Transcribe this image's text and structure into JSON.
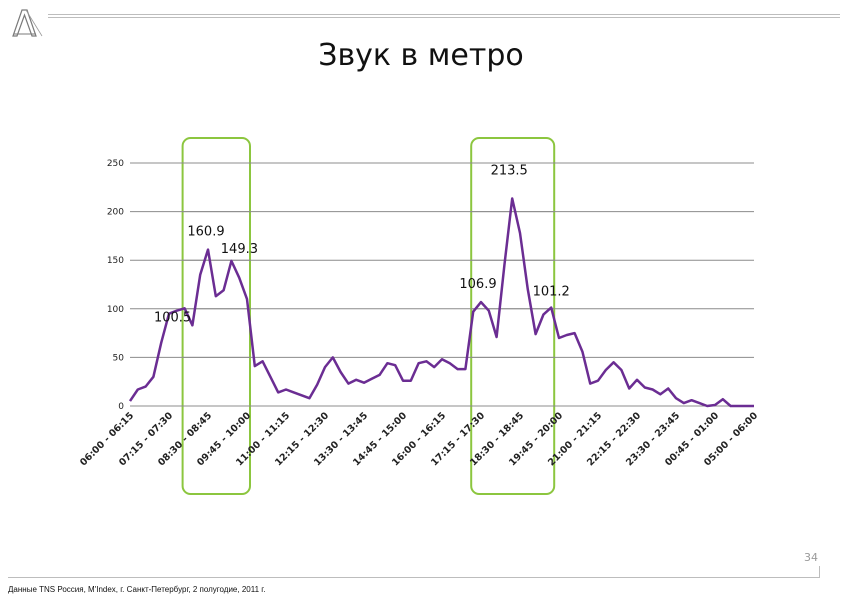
{
  "slide": {
    "title": "Звук в метро",
    "page_number": "34",
    "source": "Данные TNS Россия, M'Index, г. Санкт-Петербург, 2 полугодие, 2011 г.",
    "logo_letter": "A"
  },
  "colors": {
    "line": "#6b2d93",
    "highlight": "#8cc63f",
    "grid": "#8c8c8c",
    "axis_text": "#222222"
  },
  "chart_data": {
    "type": "line",
    "title": "",
    "xlabel": "",
    "ylabel": "",
    "ylim": [
      0,
      250
    ],
    "yticks": [
      0,
      50,
      100,
      150,
      200,
      250
    ],
    "grid": true,
    "x_tick_labels": [
      "06:00 - 06:15",
      "07:15 - 07:30",
      "08:30 - 08:45",
      "09:45 - 10:00",
      "11:00 - 11:15",
      "12:15 - 12:30",
      "13:30 - 13:45",
      "14:45 - 15:00",
      "16:00 - 16:15",
      "17:15 - 17:30",
      "18:30 - 18:45",
      "19:45 - 20:00",
      "21:00 - 21:15",
      "22:15 - 22:30",
      "23:30 - 23:45",
      "00:45 - 01:00",
      "05:00 - 06:00"
    ],
    "series": [
      {
        "values": [
          5,
          17,
          20,
          30,
          65,
          95,
          98,
          100.5,
          83,
          135,
          160.9,
          113,
          119,
          149.3,
          132,
          110,
          41,
          46,
          30,
          14,
          17,
          14,
          11,
          8,
          22,
          40,
          50,
          35,
          23,
          27,
          24,
          28,
          32,
          44,
          42,
          26,
          26,
          44,
          46,
          40,
          48,
          44,
          38,
          38,
          97,
          106.9,
          98,
          71,
          145,
          213.5,
          178,
          120,
          74,
          94,
          101.2,
          70,
          73,
          75,
          56,
          23,
          26,
          37,
          45,
          37,
          18,
          27,
          19,
          17,
          12,
          18,
          8,
          3,
          6,
          3,
          0,
          1,
          7,
          0,
          0,
          0,
          0
        ]
      }
    ],
    "annotations": [
      {
        "label": "100.5",
        "index": 7
      },
      {
        "label": "160.9",
        "index": 10
      },
      {
        "label": "149.3",
        "index": 13
      },
      {
        "label": "106.9",
        "index": 45
      },
      {
        "label": "213.5",
        "index": 49
      },
      {
        "label": "101.2",
        "index": 54
      }
    ],
    "highlight_ranges": [
      {
        "from_index": 7,
        "to_index": 15
      },
      {
        "from_index": 44,
        "to_index": 54
      }
    ]
  }
}
